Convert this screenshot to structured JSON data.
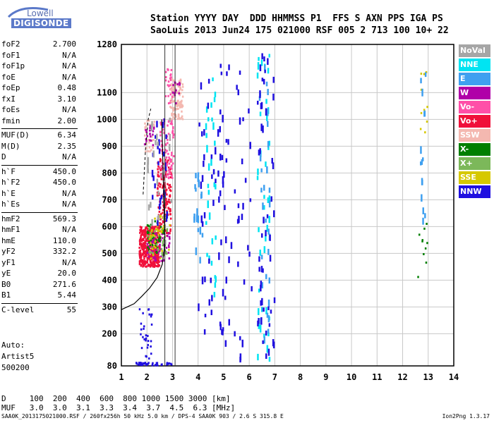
{
  "logo": {
    "line1": "Lowell",
    "line2": "DIGISONDE"
  },
  "header": {
    "row1": "Station YYYY DAY  DDD HHMMSS P1  FFS S AXN PPS IGA PS",
    "row2": "SaoLuis 2013 Jun24 175 021000 RSF 005 2 713 100 10+ 22"
  },
  "params": [
    {
      "label": "foF2",
      "value": "2.700"
    },
    {
      "label": "foF1",
      "value": "N/A"
    },
    {
      "label": "foF1p",
      "value": "N/A"
    },
    {
      "label": "foE",
      "value": "N/A"
    },
    {
      "label": "foEp",
      "value": "0.48"
    },
    {
      "label": "fxI",
      "value": "3.10"
    },
    {
      "label": "foEs",
      "value": "N/A"
    },
    {
      "label": "fmin",
      "value": "2.00"
    },
    {
      "label": "MUF(D)",
      "value": "6.34",
      "sep": true
    },
    {
      "label": "M(D)",
      "value": "2.35"
    },
    {
      "label": "D",
      "value": "N/A"
    },
    {
      "label": "h`F",
      "value": "450.0",
      "sep": true
    },
    {
      "label": "h`F2",
      "value": "450.0"
    },
    {
      "label": "h`E",
      "value": "N/A"
    },
    {
      "label": "h`Es",
      "value": "N/A"
    },
    {
      "label": "hmF2",
      "value": "569.3",
      "sep": true
    },
    {
      "label": "hmF1",
      "value": "N/A"
    },
    {
      "label": "hmE",
      "value": "110.0"
    },
    {
      "label": "yF2",
      "value": "332.2"
    },
    {
      "label": "yF1",
      "value": "N/A"
    },
    {
      "label": "yE",
      "value": "20.0"
    },
    {
      "label": "B0",
      "value": "271.6"
    },
    {
      "label": "B1",
      "value": "5.44"
    },
    {
      "label": "C-level",
      "value": "55",
      "sep": true
    }
  ],
  "auto": {
    "line1": "Auto:",
    "line2": "Artist5",
    "line3": "500200"
  },
  "legend": [
    {
      "label": "NoVal",
      "color": "#a6a6a6"
    },
    {
      "label": "NNE",
      "color": "#00e4f2"
    },
    {
      "label": "E",
      "color": "#3fa0f0"
    },
    {
      "label": "W",
      "color": "#b000a8"
    },
    {
      "label": "Vo-",
      "color": "#ff4fa8"
    },
    {
      "label": "Vo+",
      "color": "#f0103a"
    },
    {
      "label": "SSW",
      "color": "#f4b8b0"
    },
    {
      "label": "X-",
      "color": "#007f00"
    },
    {
      "label": "X+",
      "color": "#7cb85a"
    },
    {
      "label": "SSE",
      "color": "#d6c800"
    },
    {
      "label": "NNW",
      "color": "#2010e0"
    }
  ],
  "dtable": {
    "row1": "D     100  200  400  600  800 1000 1500 3000 [km]",
    "row2": "MUF   3.0  3.0  3.1  3.3  3.4  3.7  4.5  6.3 [MHz]"
  },
  "footer": {
    "left": "SAA0K_2013175021000.RSF / 260fx256h 50 kHz 5.0 km / DPS-4 SAA0K 903 / 2.6 S 315.8 E",
    "right": "Ion2Png 1.3.17"
  },
  "chart_data": {
    "type": "scatter",
    "title": "",
    "xlabel": "",
    "ylabel": "",
    "xlim": [
      1,
      14
    ],
    "ylim": [
      80,
      1280
    ],
    "x_ticks": [
      1,
      2,
      3,
      4,
      5,
      6,
      7,
      8,
      9,
      10,
      11,
      12,
      13,
      14
    ],
    "y_ticks": [
      80,
      200,
      300,
      400,
      500,
      600,
      700,
      800,
      900,
      1000,
      1100,
      1280
    ],
    "grid": true,
    "legend_position": "right",
    "series": [
      {
        "name": "Vo+",
        "color": "#f0103a",
        "clusters": [
          {
            "x": [
              1.7,
              2.5
            ],
            "y": [
              450,
              600
            ],
            "n": 420
          },
          {
            "x": [
              2.4,
              2.95
            ],
            "y": [
              560,
              860
            ],
            "n": 160
          }
        ]
      },
      {
        "name": "Vo-",
        "color": "#ff4fa8",
        "clusters": [
          {
            "x": [
              2.5,
              3.05
            ],
            "y": [
              780,
              1000
            ],
            "n": 90
          },
          {
            "x": [
              2.7,
              3.0
            ],
            "y": [
              1060,
              1200
            ],
            "n": 30
          }
        ]
      },
      {
        "name": "SSW",
        "color": "#f4b8b0",
        "clusters": [
          {
            "x": [
              2.9,
              3.4
            ],
            "y": [
              1000,
              1150
            ],
            "n": 110
          },
          {
            "x": [
              1.9,
              2.3
            ],
            "y": [
              880,
              1000
            ],
            "n": 30
          }
        ]
      },
      {
        "name": "W",
        "color": "#b000a8",
        "clusters": [
          {
            "x": [
              2.0,
              2.9
            ],
            "y": [
              470,
              580
            ],
            "n": 60
          },
          {
            "x": [
              1.9,
              2.3
            ],
            "y": [
              900,
              980
            ],
            "n": 20
          },
          {
            "x": [
              3.0,
              3.3
            ],
            "y": [
              1050,
              1150
            ],
            "n": 14
          }
        ]
      },
      {
        "name": "X-",
        "color": "#007f00",
        "clusters": [
          {
            "x": [
              2.0,
              2.7
            ],
            "y": [
              500,
              620
            ],
            "n": 45
          },
          {
            "x": [
              12.6,
              13.0
            ],
            "y": [
              380,
              620
            ],
            "n": 10
          }
        ]
      },
      {
        "name": "X+",
        "color": "#7cb85a",
        "clusters": [
          {
            "x": [
              2.0,
              2.8
            ],
            "y": [
              490,
              610
            ],
            "n": 40
          }
        ]
      },
      {
        "name": "SSE",
        "color": "#d6c800",
        "clusters": [
          {
            "x": [
              2.1,
              2.9
            ],
            "y": [
              480,
              640
            ],
            "n": 40
          },
          {
            "x": [
              12.7,
              13.0
            ],
            "y": [
              950,
              1180
            ],
            "n": 10
          }
        ]
      },
      {
        "name": "NNE",
        "color": "#00e4f2",
        "clusters": [
          {
            "x": [
              4.3,
              4.7
            ],
            "y": [
              280,
              1150
            ],
            "n": 30
          },
          {
            "x": [
              6.3,
              6.8
            ],
            "y": [
              100,
              1250
            ],
            "n": 40
          }
        ]
      },
      {
        "name": "E",
        "color": "#3fa0f0",
        "clusters": [
          {
            "x": [
              3.8,
              4.2
            ],
            "y": [
              450,
              800
            ],
            "n": 20
          },
          {
            "x": [
              6.4,
              6.8
            ],
            "y": [
              150,
              1200
            ],
            "n": 30
          },
          {
            "x": [
              12.6,
              12.9
            ],
            "y": [
              600,
              1250
            ],
            "n": 15
          }
        ]
      },
      {
        "name": "NNW",
        "color": "#2010e0",
        "clusters": [
          {
            "x": [
              1.7,
              2.2
            ],
            "y": [
              100,
              300
            ],
            "n": 30
          },
          {
            "x": [
              2.2,
              2.8
            ],
            "y": [
              600,
              1000
            ],
            "n": 25
          },
          {
            "x": [
              4.0,
              5.0
            ],
            "y": [
              200,
              1200
            ],
            "n": 50
          },
          {
            "x": [
              5.0,
              6.1
            ],
            "y": [
              100,
              1200
            ],
            "n": 40
          },
          {
            "x": [
              6.3,
              7.0
            ],
            "y": [
              100,
              1250
            ],
            "n": 50
          },
          {
            "x": [
              1.5,
              3.0
            ],
            "y": [
              82,
              92
            ],
            "n": 40
          }
        ]
      },
      {
        "name": "NoVal",
        "color": "#a6a6a6",
        "clusters": [
          {
            "x": [
              2.0,
              3.0
            ],
            "y": [
              500,
              1000
            ],
            "n": 25
          }
        ]
      }
    ],
    "profile": {
      "name": "electron density profile",
      "x": [
        1.0,
        1.5,
        1.8,
        2.1,
        2.4,
        2.6,
        2.68,
        2.7
      ],
      "y": [
        290,
        312,
        340,
        370,
        410,
        460,
        520,
        569.3
      ],
      "top_x": [
        2.7,
        2.66,
        2.62,
        2.58
      ],
      "top_y": [
        569.3,
        700,
        850,
        1000
      ]
    },
    "trace_left": {
      "x": [
        1.85,
        1.95,
        2.05,
        2.15
      ],
      "y": [
        720,
        900,
        1000,
        1040
      ]
    },
    "vertical_markers": [
      2.7,
      3.1
    ]
  }
}
